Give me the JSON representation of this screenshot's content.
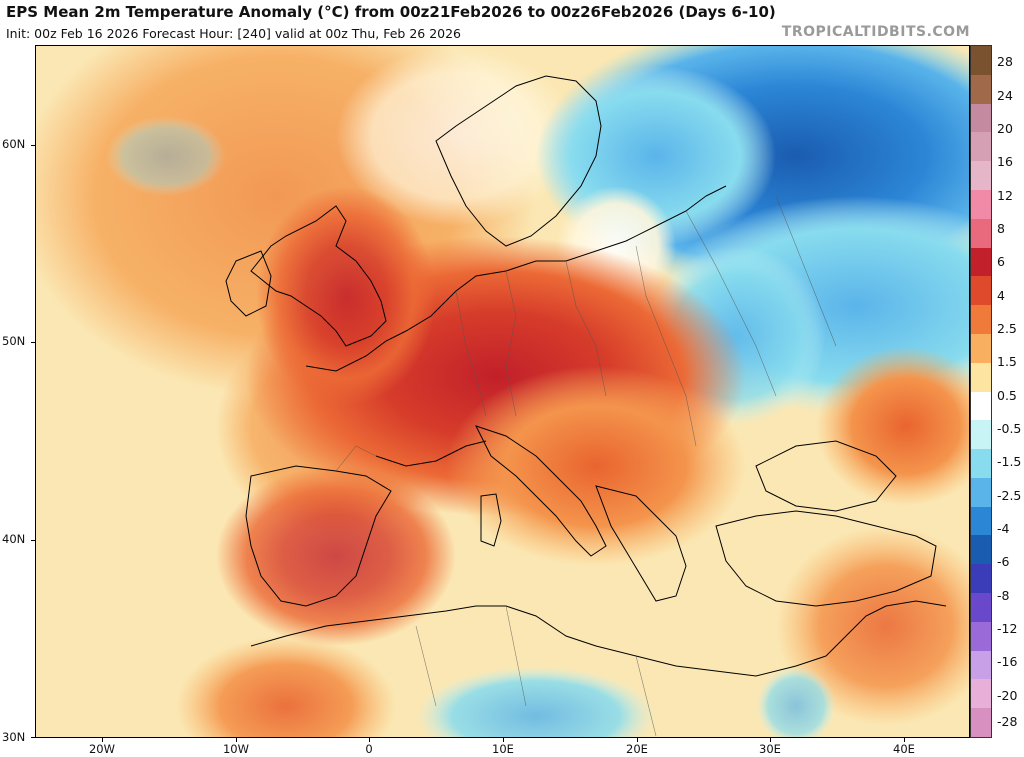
{
  "header": {
    "title": "EPS Mean 2m Temperature Anomaly (°C) from 00z21Feb2026 to 00z26Feb2026 (Days 6-10)",
    "subtitle": "Init: 00z Feb 16 2026   Forecast Hour: [240]   valid at 00z Thu, Feb 26 2026",
    "brand": "TROPICALTIDBITS.COM"
  },
  "axes": {
    "latitudes": [
      "60N",
      "50N",
      "40N",
      "30N"
    ],
    "longitudes": [
      "20W",
      "10W",
      "0",
      "10E",
      "20E",
      "30E",
      "40E"
    ]
  },
  "colorbar": {
    "labels": [
      "28",
      "24",
      "20",
      "16",
      "12",
      "8",
      "6",
      "4",
      "2.5",
      "1.5",
      "0.5",
      "-0.5",
      "-1.5",
      "-2.5",
      "-4",
      "-6",
      "-8",
      "-12",
      "-16",
      "-20",
      "-28"
    ],
    "colors": [
      "#7a5230",
      "#a06a4a",
      "#c48aa0",
      "#d6a0b4",
      "#e4b6c8",
      "#f08aa6",
      "#e86a7c",
      "#c2202a",
      "#e04a2c",
      "#f07a3a",
      "#f8b060",
      "#fde4a0",
      "#ffffff",
      "#c8f4f6",
      "#88dcee",
      "#5ab4ea",
      "#2c86d6",
      "#1a5cb0",
      "#3a3cb8",
      "#6a48cc",
      "#9a6ad8",
      "#c8a0e8",
      "#e8b0d8",
      "#d890c0"
    ]
  },
  "colors": {
    "land_border": "#000000",
    "sea_background": "#fbe7b3"
  }
}
